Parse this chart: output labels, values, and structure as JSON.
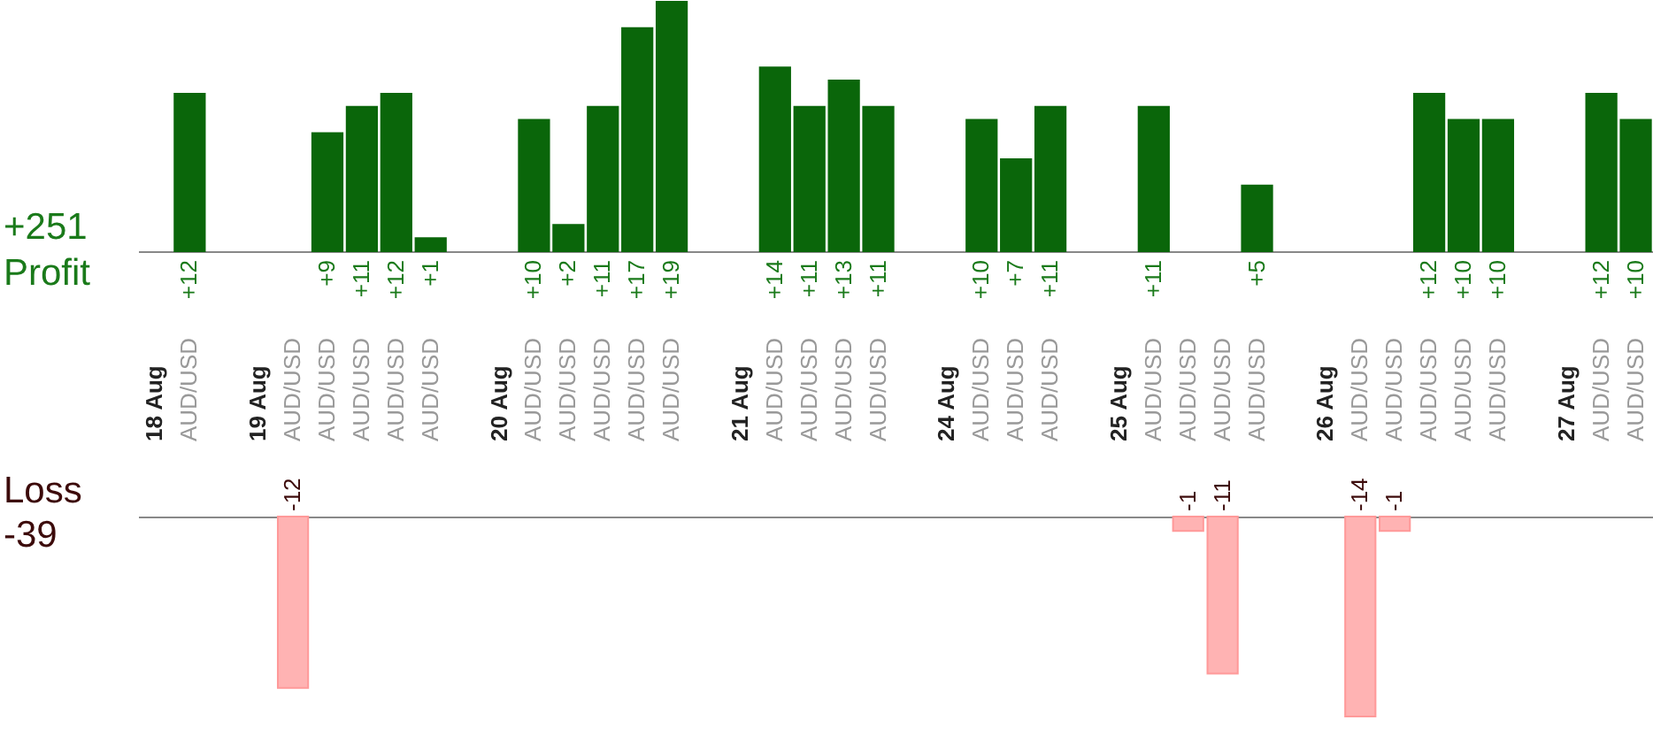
{
  "chart_data": [
    {
      "type": "bar",
      "ylabel": "Profit",
      "annotations": [
        "+251"
      ],
      "tick_labels": "x",
      "categories": [
        "18 Aug",
        "AUD/USD",
        null,
        "19 Aug",
        "AUD/USD",
        "AUD/USD",
        "AUD/USD",
        "AUD/USD",
        "AUD/USD",
        null,
        "20 Aug",
        "AUD/USD",
        "AUD/USD",
        "AUD/USD",
        "AUD/USD",
        "AUD/USD",
        null,
        "21 Aug",
        "AUD/USD",
        "AUD/USD",
        "AUD/USD",
        "AUD/USD",
        null,
        "24 Aug",
        "AUD/USD",
        "AUD/USD",
        "AUD/USD",
        null,
        "25 Aug",
        "AUD/USD",
        "AUD/USD",
        "AUD/USD",
        "AUD/USD",
        null,
        "26 Aug",
        "AUD/USD",
        "AUD/USD",
        "AUD/USD",
        "AUD/USD",
        "AUD/USD",
        null,
        "27 Aug",
        "AUD/USD",
        "AUD/USD"
      ],
      "series": [
        {
          "color": "#0a660a",
          "values": [
            null,
            12,
            null,
            null,
            null,
            9,
            11,
            12,
            1,
            null,
            null,
            10,
            2,
            11,
            17,
            19,
            null,
            null,
            14,
            11,
            13,
            11,
            null,
            null,
            10,
            7,
            11,
            null,
            null,
            11,
            null,
            null,
            5,
            null,
            null,
            null,
            null,
            12,
            10,
            10,
            null,
            null,
            12,
            10
          ],
          "value_labels": [
            null,
            "+12",
            null,
            null,
            null,
            "+9",
            "+11",
            "+12",
            "+1",
            null,
            null,
            "+10",
            "+2",
            "+11",
            "+17",
            "+19",
            null,
            null,
            "+14",
            "+11",
            "+13",
            "+11",
            null,
            null,
            "+10",
            "+7",
            "+11",
            null,
            null,
            "+11",
            null,
            null,
            "+5",
            null,
            null,
            null,
            null,
            "+12",
            "+10",
            "+10",
            null,
            null,
            "+12",
            "+10"
          ]
        }
      ]
    },
    {
      "type": "bar",
      "ylabel": "Loss",
      "annotations": [
        "-39"
      ],
      "tick_labels": false,
      "series": [
        {
          "color": "#ffb3b3",
          "values": [
            null,
            null,
            null,
            null,
            -12,
            null,
            null,
            null,
            null,
            null,
            null,
            null,
            null,
            null,
            null,
            null,
            null,
            null,
            null,
            null,
            null,
            null,
            null,
            null,
            null,
            null,
            null,
            null,
            null,
            null,
            -1,
            -11,
            null,
            null,
            null,
            -14,
            -1,
            null,
            null,
            null,
            null,
            null,
            null,
            null
          ],
          "value_labels": [
            null,
            null,
            null,
            null,
            "-12",
            null,
            null,
            null,
            null,
            null,
            null,
            null,
            null,
            null,
            null,
            null,
            null,
            null,
            null,
            null,
            null,
            null,
            null,
            null,
            null,
            null,
            null,
            null,
            null,
            null,
            "-1",
            "-11",
            null,
            null,
            null,
            "-14",
            "-1",
            null,
            null,
            null,
            null,
            null,
            null,
            null
          ]
        }
      ]
    }
  ]
}
